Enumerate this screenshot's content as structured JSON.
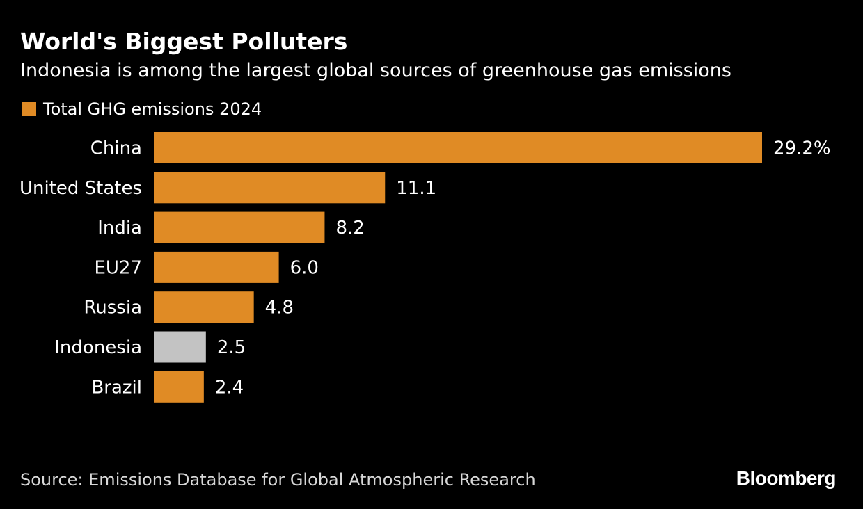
{
  "colors": {
    "background": "#000000",
    "bar_default": "#e08b25",
    "bar_highlight": "#c3c3c3",
    "text": "#ffffff"
  },
  "header": {
    "title": "World's Biggest Polluters",
    "subtitle": "Indonesia is among the largest global sources of greenhouse gas emissions"
  },
  "footer": {
    "source": "Source: Emissions Database for Global Atmospheric Research",
    "logo_text": "Bloomberg"
  },
  "chart_data": {
    "type": "bar",
    "orientation": "horizontal",
    "title": "World's Biggest Polluters",
    "subtitle": "Indonesia is among the largest global sources of greenhouse gas emissions",
    "legend": [
      "Total GHG emissions 2024"
    ],
    "legend_position": "top-left",
    "categories": [
      "China",
      "United States",
      "India",
      "EU27",
      "Russia",
      "Indonesia",
      "Brazil"
    ],
    "series": [
      {
        "name": "Total GHG emissions 2024",
        "values": [
          29.2,
          11.1,
          8.2,
          6.0,
          4.8,
          2.5,
          2.4
        ]
      }
    ],
    "value_labels": [
      "29.2%",
      "11.1",
      "8.2",
      "6.0",
      "4.8",
      "2.5",
      "2.4"
    ],
    "highlight_category": "Indonesia",
    "xlim": [
      0,
      29.2
    ],
    "xlabel": "",
    "ylabel": "",
    "grid": false
  }
}
